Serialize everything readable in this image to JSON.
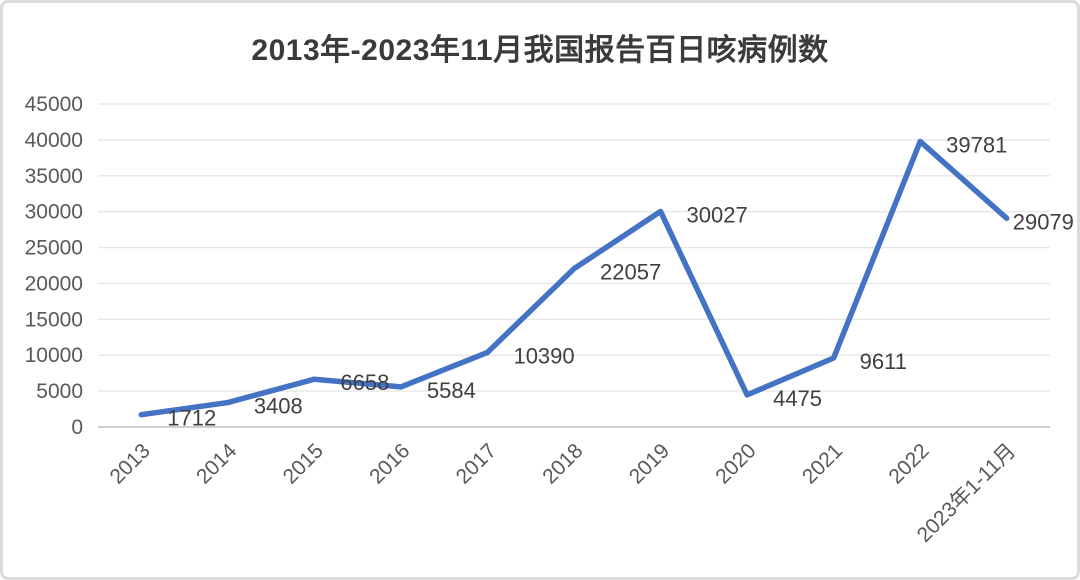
{
  "window": {
    "background": "#ffffff",
    "border_color": "#dcdcdc"
  },
  "chart_data": {
    "type": "line",
    "title": "2013年-2023年11月我国报告百日咳病例数",
    "categories": [
      "2013",
      "2014",
      "2015",
      "2016",
      "2017",
      "2018",
      "2019",
      "2020",
      "2021",
      "2022",
      "2023年1-11月"
    ],
    "values": [
      1712,
      3408,
      6658,
      5584,
      10390,
      22057,
      30027,
      4475,
      9611,
      39781,
      29079
    ],
    "data_labels": [
      "1712",
      "3408",
      "6658",
      "5584",
      "10390",
      "22057",
      "30027",
      "4475",
      "9611",
      "39781",
      "29079"
    ],
    "ylim": [
      0,
      45000
    ],
    "ytick_step": 5000,
    "ytick_labels": [
      "0",
      "5000",
      "10000",
      "15000",
      "20000",
      "25000",
      "30000",
      "35000",
      "40000",
      "45000"
    ],
    "xlabel": "",
    "ylabel": "",
    "grid": true,
    "legend": "none",
    "x_label_rotation_deg": -45,
    "line_color": "#4472C4",
    "line_width": 5.5,
    "data_label_color": "#404040",
    "axis_text_color": "#595959",
    "gridline_color": "#e7e7e7",
    "axis_line_color": "#c9c9c9",
    "title_color": "#3b3b3b"
  }
}
